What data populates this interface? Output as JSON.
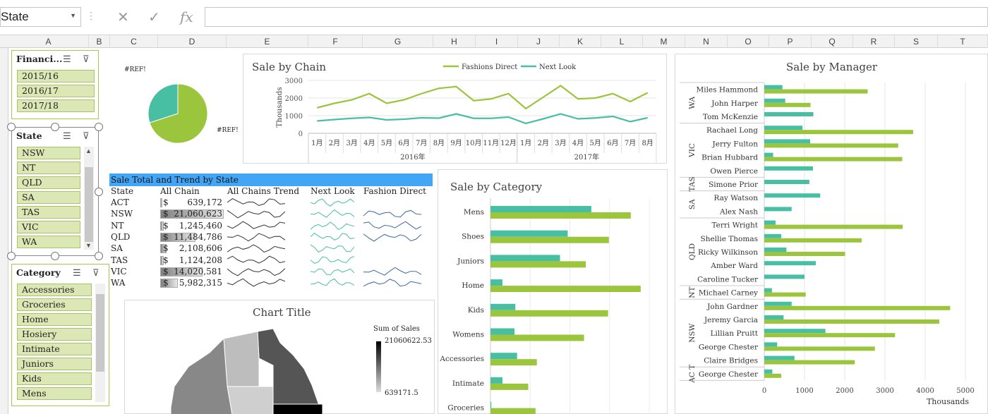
{
  "formula_bar": {
    "name_box": "State",
    "fx": "fx"
  },
  "columns": [
    {
      "l": "A",
      "x": 12,
      "w": 114
    },
    {
      "l": "B",
      "x": 126,
      "w": 30
    },
    {
      "l": "C",
      "x": 156,
      "w": 68
    },
    {
      "l": "D",
      "x": 224,
      "w": 97
    },
    {
      "l": "E",
      "x": 321,
      "w": 116
    },
    {
      "l": "F",
      "x": 437,
      "w": 77
    },
    {
      "l": "G",
      "x": 514,
      "w": 100
    },
    {
      "l": "H",
      "x": 614,
      "w": 60
    },
    {
      "l": "I",
      "x": 674,
      "w": 60
    },
    {
      "l": "J",
      "x": 734,
      "w": 59
    },
    {
      "l": "K",
      "x": 793,
      "w": 59
    },
    {
      "l": "L",
      "x": 852,
      "w": 59
    },
    {
      "l": "M",
      "x": 911,
      "w": 60
    },
    {
      "l": "N",
      "x": 971,
      "w": 60
    },
    {
      "l": "O",
      "x": 1031,
      "w": 59
    },
    {
      "l": "P",
      "x": 1090,
      "w": 60
    },
    {
      "l": "Q",
      "x": 1150,
      "w": 59
    },
    {
      "l": "R",
      "x": 1209,
      "w": 59
    },
    {
      "l": "S",
      "x": 1268,
      "w": 61
    },
    {
      "l": "T",
      "x": 1329,
      "w": 71
    }
  ],
  "slicers": {
    "financial": {
      "title": "Financi...",
      "items": [
        "2015/16",
        "2016/17",
        "2017/18"
      ]
    },
    "state": {
      "title": "State",
      "items": [
        "NSW",
        "NT",
        "QLD",
        "SA",
        "TAS",
        "VIC",
        "WA"
      ]
    },
    "category": {
      "title": "Category",
      "items": [
        "Accessories",
        "Groceries",
        "Home",
        "Hosiery",
        "Intimate",
        "Juniors",
        "Kids",
        "Mens"
      ]
    }
  },
  "pie": {
    "label_top": "#REF!",
    "label_right": "#REF!",
    "slices": [
      {
        "value": 70,
        "color": "#9bc53d"
      },
      {
        "value": 30,
        "color": "#48bfa3"
      }
    ]
  },
  "sale_by_chain": {
    "title": "Sale by Chain",
    "ylabel": "Thousands",
    "yticks": [
      0,
      1000,
      2000,
      3000
    ],
    "months": [
      "1月",
      "2月",
      "3月",
      "4月",
      "5月",
      "6月",
      "7月",
      "8月",
      "9月",
      "10月",
      "11月",
      "12月",
      "1月",
      "2月",
      "3月",
      "4月",
      "5月",
      "6月",
      "7月",
      "8月"
    ],
    "years": [
      "2016年",
      "2017年"
    ],
    "series": [
      {
        "name": "Fashions Direct",
        "color": "#9bc53d",
        "values": [
          1450,
          1700,
          1900,
          2250,
          1700,
          1900,
          2250,
          2550,
          2650,
          1850,
          1950,
          2250,
          1400,
          2050,
          2700,
          1950,
          2000,
          2250,
          1800,
          2300
        ]
      },
      {
        "name": "Next Look",
        "color": "#48bfa3",
        "values": [
          700,
          780,
          850,
          900,
          760,
          800,
          880,
          860,
          1100,
          850,
          850,
          920,
          560,
          820,
          1100,
          820,
          870,
          960,
          660,
          880
        ]
      }
    ]
  },
  "state_table": {
    "title": "Sale Total and Trend by State",
    "headers": [
      "State",
      "All Chain",
      "All Chains Trend",
      "Next Look",
      "Fashion Direct"
    ],
    "rows": [
      {
        "state": "ACT",
        "currency": "$",
        "value": "639,172",
        "frac": 0.03,
        "fd": false
      },
      {
        "state": "NSW",
        "currency": "$",
        "value": "21,060,623",
        "frac": 1.0,
        "fd": true
      },
      {
        "state": "NT",
        "currency": "$",
        "value": "1,245,460",
        "frac": 0.06,
        "fd": true
      },
      {
        "state": "QLD",
        "currency": "$",
        "value": "11,484,786",
        "frac": 0.55,
        "fd": true
      },
      {
        "state": "SA",
        "currency": "$",
        "value": "2,108,606",
        "frac": 0.1,
        "fd": false
      },
      {
        "state": "TAS",
        "currency": "$",
        "value": "1,124,208",
        "frac": 0.05,
        "fd": false
      },
      {
        "state": "VIC",
        "currency": "$",
        "value": "14,020,581",
        "frac": 0.67,
        "fd": true
      },
      {
        "state": "WA",
        "currency": "$",
        "value": "5,982,315",
        "frac": 0.28,
        "fd": true
      }
    ]
  },
  "map": {
    "title": "Chart Title",
    "legend_title": "Sum of Sales",
    "max": "21060622.53",
    "min": "639171.5"
  },
  "sale_by_category": {
    "title": "Sale by Category",
    "categories": [
      "Mens",
      "Shoes",
      "Juniors",
      "Home",
      "Kids",
      "Womens",
      "Accessories",
      "Intimate",
      "Groceries"
    ],
    "next_look": [
      2350,
      1800,
      1620,
      280,
      580,
      560,
      620,
      280,
      20
    ],
    "fashions_direct": [
      3270,
      2760,
      2220,
      3500,
      2740,
      2180,
      1080,
      880,
      1050
    ]
  },
  "sale_by_manager": {
    "title": "Sale by Manager",
    "xlabel": "Thousands",
    "xticks": [
      0,
      1000,
      2000,
      3000,
      4000,
      5000
    ],
    "rows": [
      {
        "state": "WA",
        "name": "Miles Hammond",
        "nl": 450,
        "fd": 2570
      },
      {
        "state": "",
        "name": "John Harper",
        "nl": 520,
        "fd": 1150
      },
      {
        "state": "",
        "name": "Tom McKenzie",
        "nl": 1220,
        "fd": 0
      },
      {
        "state": "VIC",
        "name": "Rachael Long",
        "nl": 950,
        "fd": 3700
      },
      {
        "state": "",
        "name": "Jerry Fulton",
        "nl": 1140,
        "fd": 3330
      },
      {
        "state": "",
        "name": "Brian Hubbard",
        "nl": 220,
        "fd": 3430
      },
      {
        "state": "",
        "name": "Owen Pierce",
        "nl": 1210,
        "fd": 0
      },
      {
        "state": "TAS",
        "name": "Simone Prior",
        "nl": 1120,
        "fd": 0
      },
      {
        "state": "SA",
        "name": "Ray Watson",
        "nl": 1390,
        "fd": 0
      },
      {
        "state": "",
        "name": "Alex Nash",
        "nl": 680,
        "fd": 0
      },
      {
        "state": "QLD",
        "name": "Terri Wright",
        "nl": 280,
        "fd": 3440
      },
      {
        "state": "",
        "name": "Shellie Thomas",
        "nl": 420,
        "fd": 2420
      },
      {
        "state": "",
        "name": "Ricky Wilkinson",
        "nl": 550,
        "fd": 2010
      },
      {
        "state": "",
        "name": "Amber Ward",
        "nl": 1280,
        "fd": 0
      },
      {
        "state": "",
        "name": "Caroline Tucker",
        "nl": 1000,
        "fd": 0
      },
      {
        "state": "NT",
        "name": "Michael Carney",
        "nl": 190,
        "fd": 1030
      },
      {
        "state": "NSW",
        "name": "John Gardner",
        "nl": 680,
        "fd": 4620
      },
      {
        "state": "",
        "name": "Jeremy Garcia",
        "nl": 480,
        "fd": 4350
      },
      {
        "state": "",
        "name": "Lillian Pruitt",
        "nl": 1520,
        "fd": 3250
      },
      {
        "state": "",
        "name": "George Chester",
        "nl": 320,
        "fd": 2750
      },
      {
        "state": "",
        "name": "Claire Bridges",
        "nl": 750,
        "fd": 2250
      },
      {
        "state": "AC T",
        "name": "George Chester",
        "nl": 200,
        "fd": 420
      }
    ],
    "groups": [
      {
        "label": "WA",
        "from": 0,
        "to": 2
      },
      {
        "label": "VIC",
        "from": 3,
        "to": 6
      },
      {
        "label": "TAS",
        "from": 7,
        "to": 7
      },
      {
        "label": "SA",
        "from": 8,
        "to": 9
      },
      {
        "label": "QLD",
        "from": 10,
        "to": 14
      },
      {
        "label": "NT",
        "from": 15,
        "to": 15
      },
      {
        "label": "NSW",
        "from": 16,
        "to": 20
      },
      {
        "label": "AC T",
        "from": 21,
        "to": 21
      }
    ]
  },
  "colors": {
    "fashions_direct": "#9bc53d",
    "next_look": "#48bfa3",
    "slicer_item": "#dbe8b5",
    "table_header": "#42a5f5"
  }
}
